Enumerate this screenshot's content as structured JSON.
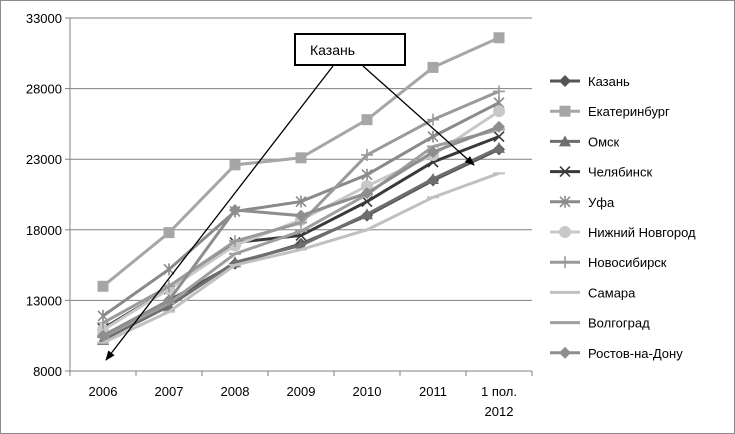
{
  "chart_data": {
    "type": "line",
    "title": "",
    "xlabel": "",
    "ylabel": "",
    "categories": [
      "2006",
      "2007",
      "2008",
      "2009",
      "2010",
      "2011",
      "1 пол. 2012"
    ],
    "ylim": [
      8000,
      33000
    ],
    "yticks": [
      "8000",
      "13000",
      "18000",
      "23000",
      "28000",
      "33000"
    ],
    "grid": "horizontal",
    "legend": "right",
    "annotation": "Казань",
    "series": [
      {
        "name": "Казань",
        "color": "#555555",
        "marker": "diamond",
        "values": [
          10500,
          13000,
          15600,
          17000,
          19000,
          21500,
          23700
        ]
      },
      {
        "name": "Екатеринбург",
        "color": "#a6a6a6",
        "marker": "square",
        "values": [
          14000,
          17800,
          22600,
          23100,
          25800,
          29500,
          31600
        ]
      },
      {
        "name": "Омск",
        "color": "#6e6e6e",
        "marker": "triangle",
        "values": [
          10200,
          12600,
          15700,
          16900,
          19100,
          21600,
          23800
        ]
      },
      {
        "name": "Челябинск",
        "color": "#3a3a3a",
        "marker": "x",
        "values": [
          11000,
          13800,
          17100,
          17600,
          20000,
          22800,
          24600
        ]
      },
      {
        "name": "Уфа",
        "color": "#8a8a8a",
        "marker": "star",
        "values": [
          11900,
          15200,
          19300,
          20000,
          21900,
          24600,
          27000
        ]
      },
      {
        "name": "Нижний Новгород",
        "color": "#c8c8c8",
        "marker": "circle",
        "values": [
          10900,
          13800,
          16900,
          18700,
          21100,
          23300,
          26400
        ]
      },
      {
        "name": "Новосибирск",
        "color": "#9a9a9a",
        "marker": "plus",
        "values": [
          11400,
          14000,
          17200,
          18500,
          23300,
          25800,
          27800
        ]
      },
      {
        "name": "Самара",
        "color": "#c0c0c0",
        "marker": "dash",
        "values": [
          10000,
          12200,
          15500,
          16600,
          18000,
          20300,
          22000
        ]
      },
      {
        "name": "Волгоград",
        "color": "#9e9e9e",
        "marker": "dash",
        "values": [
          10400,
          12800,
          16300,
          17900,
          20500,
          23900,
          25100
        ]
      },
      {
        "name": "Ростов-на-Дону",
        "color": "#8e8e8e",
        "marker": "diamond",
        "values": [
          10500,
          13000,
          19400,
          19000,
          20600,
          23500,
          25300
        ]
      }
    ]
  }
}
